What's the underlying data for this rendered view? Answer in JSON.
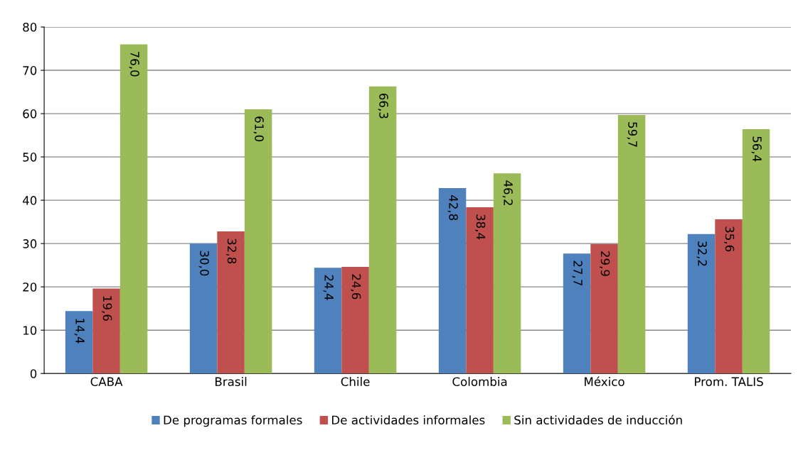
{
  "chart_data": {
    "type": "bar",
    "categories": [
      "CABA",
      "Brasil",
      "Chile",
      "Colombia",
      "México",
      "Prom. TALIS"
    ],
    "series": [
      {
        "name": "De programas formales",
        "color": "#4f81bd",
        "values": [
          14.4,
          30.0,
          24.4,
          42.8,
          27.7,
          32.2
        ],
        "value_labels": [
          "14,4",
          "30,0",
          "24,4",
          "42,8",
          "27,7",
          "32,2"
        ]
      },
      {
        "name": "De actividades informales",
        "color": "#c0504d",
        "values": [
          19.6,
          32.8,
          24.6,
          38.4,
          29.9,
          35.6
        ],
        "value_labels": [
          "19,6",
          "32,8",
          "24,6",
          "38,4",
          "29,9",
          "35,6"
        ]
      },
      {
        "name": "Sin actividades de inducción",
        "color": "#9bbb59",
        "values": [
          76.0,
          61.0,
          66.3,
          46.2,
          59.7,
          56.4
        ],
        "value_labels": [
          "76,0",
          "61,0",
          "66,3",
          "46,2",
          "59,7",
          "56,4"
        ]
      }
    ],
    "ylim": [
      0,
      80
    ],
    "yticks": [
      0,
      10,
      20,
      30,
      40,
      50,
      60,
      70,
      80
    ],
    "grid": "y",
    "legend": "bottom"
  }
}
